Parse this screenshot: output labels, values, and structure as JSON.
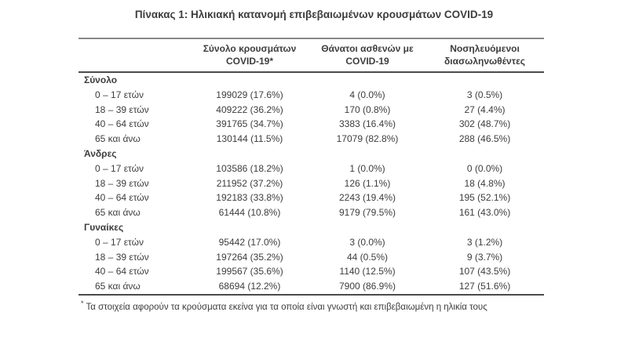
{
  "page": {
    "title": "Πίνακας 1: Ηλικιακή κατανομή επιβεβαιωμένων κρουσμάτων COVID-19"
  },
  "table": {
    "columns": [
      {
        "line1": "Σύνολο κρουσμάτων",
        "line2": "COVID-19*"
      },
      {
        "line1": "Θάνατοι ασθενών με",
        "line2": "COVID-19"
      },
      {
        "line1": "Νοσηλευόμενοι",
        "line2": "διασωληνωθέντες"
      }
    ],
    "sections": [
      {
        "name": "Σύνολο",
        "rows": [
          {
            "label": "0 – 17 ετών",
            "cases": "199029 (17.6%)",
            "deaths": "4 (0.0%)",
            "intubated": "3 (0.5%)"
          },
          {
            "label": "18 – 39 ετών",
            "cases": "409222 (36.2%)",
            "deaths": "170 (0.8%)",
            "intubated": "27 (4.4%)"
          },
          {
            "label": "40 – 64 ετών",
            "cases": "391765 (34.7%)",
            "deaths": "3383 (16.4%)",
            "intubated": "302 (48.7%)"
          },
          {
            "label": "65 και άνω",
            "cases": "130144 (11.5%)",
            "deaths": "17079 (82.8%)",
            "intubated": "288 (46.5%)"
          }
        ]
      },
      {
        "name": "Άνδρες",
        "rows": [
          {
            "label": "0 – 17 ετών",
            "cases": "103586 (18.2%)",
            "deaths": "1 (0.0%)",
            "intubated": "0 (0.0%)"
          },
          {
            "label": "18 – 39 ετών",
            "cases": "211952 (37.2%)",
            "deaths": "126 (1.1%)",
            "intubated": "18 (4.8%)"
          },
          {
            "label": "40 – 64 ετών",
            "cases": "192183 (33.8%)",
            "deaths": "2243 (19.4%)",
            "intubated": "195 (52.1%)"
          },
          {
            "label": "65 και άνω",
            "cases": "61444 (10.8%)",
            "deaths": "9179 (79.5%)",
            "intubated": "161 (43.0%)"
          }
        ]
      },
      {
        "name": "Γυναίκες",
        "rows": [
          {
            "label": "0 – 17 ετών",
            "cases": "95442 (17.0%)",
            "deaths": "3 (0.0%)",
            "intubated": "3 (1.2%)"
          },
          {
            "label": "18 – 39 ετών",
            "cases": "197264 (35.2%)",
            "deaths": "44 (0.5%)",
            "intubated": "9 (3.7%)"
          },
          {
            "label": "40 – 64 ετών",
            "cases": "199567 (35.6%)",
            "deaths": "1140 (12.5%)",
            "intubated": "107 (43.5%)"
          },
          {
            "label": "65 και άνω",
            "cases": "68694 (12.2%)",
            "deaths": "7900 (86.9%)",
            "intubated": "127 (51.6%)"
          }
        ]
      }
    ]
  },
  "footnote": {
    "marker": "*",
    "text": "Τα στοιχεία αφορούν τα κρούσματα εκείνα για τα οποία είναι γνωστή και επιβεβαιωμένη η ηλικία τους"
  },
  "colors": {
    "text": "#3d3d3f",
    "border_dark": "#4b4b4d",
    "border_light": "#87888a"
  }
}
